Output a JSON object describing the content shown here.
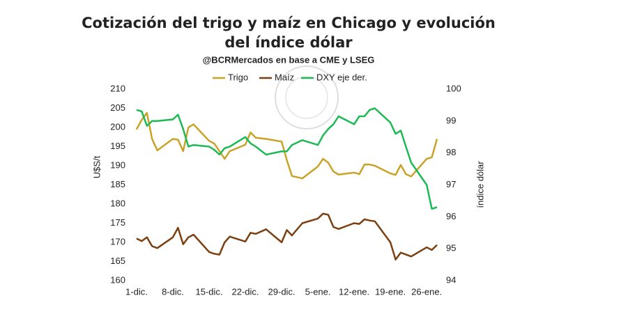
{
  "chart_data": {
    "type": "line",
    "title": [
      "Cotización del trigo y maíz en Chicago y evolución",
      "del índice dólar"
    ],
    "subtitle": "@BCRMercados en base a CME y LSEG",
    "y_label": "U$S/t",
    "y2_label": "índice dólar",
    "x": [
      0,
      1,
      2,
      3,
      4,
      7,
      8,
      9,
      10,
      11,
      14,
      15,
      16,
      17,
      18,
      21,
      22,
      23,
      25,
      28,
      29,
      30,
      32,
      35,
      36,
      37,
      38,
      39,
      42,
      43,
      44,
      45,
      46,
      49,
      50,
      51,
      52,
      53,
      56,
      57,
      58
    ],
    "xlim": [
      -0.8,
      58.4
    ],
    "xticks": [
      {
        "value": 0,
        "label": "1-dic."
      },
      {
        "value": 7,
        "label": "8-dic."
      },
      {
        "value": 14,
        "label": "15-dic."
      },
      {
        "value": 21,
        "label": "22-dic."
      },
      {
        "value": 28,
        "label": "29-dic."
      },
      {
        "value": 35,
        "label": "5-ene."
      },
      {
        "value": 42,
        "label": "12-ene."
      },
      {
        "value": 49,
        "label": "19-ene."
      },
      {
        "value": 56,
        "label": "26-ene."
      }
    ],
    "ylim": [
      160,
      210
    ],
    "yticks": [
      160,
      165,
      170,
      175,
      180,
      185,
      190,
      195,
      200,
      205,
      210
    ],
    "y2lim": [
      94,
      100
    ],
    "y2ticks": [
      94,
      95,
      96,
      97,
      98,
      99,
      100
    ],
    "legend": "top",
    "series": [
      {
        "name": "Trigo",
        "color": "#c9a227",
        "values": [
          199.5,
          202,
          203.8,
          197,
          194,
          197,
          196.8,
          193.8,
          200,
          200.8,
          196.5,
          195.8,
          193.8,
          191.8,
          193.8,
          195.5,
          198.7,
          197.3,
          197,
          196.3,
          191.5,
          187.3,
          186.7,
          189.8,
          191.8,
          190.8,
          188.5,
          187.7,
          188.2,
          187.8,
          190.3,
          190.3,
          190,
          188,
          187.6,
          190.2,
          187.8,
          187.2,
          191.8,
          192.2,
          197
        ]
      },
      {
        "name": "Maíz",
        "color": "#7b3f10",
        "values": [
          171,
          170.3,
          171.3,
          169,
          168.5,
          171.3,
          173.8,
          169.5,
          171.3,
          172,
          167.5,
          167,
          166.8,
          170,
          171.5,
          170.2,
          172.5,
          172.2,
          173.4,
          170,
          173.2,
          171.8,
          175,
          176.2,
          177.5,
          177.2,
          174,
          173.5,
          175,
          174.8,
          176,
          175.7,
          175.5,
          170,
          165.5,
          167.3,
          166.8,
          166.3,
          168.7,
          168,
          169.3
        ]
      },
      {
        "name": "DXY eje der.",
        "color": "#1db954",
        "axis": "y2",
        "values": [
          99.35,
          99.3,
          98.85,
          99.0,
          99.0,
          99.05,
          99.2,
          98.75,
          98.2,
          98.25,
          98.2,
          98.1,
          97.95,
          98.15,
          98.2,
          98.5,
          98.3,
          98.2,
          97.95,
          98.05,
          98.05,
          98.25,
          98.4,
          98.25,
          98.55,
          98.75,
          98.9,
          99.15,
          98.9,
          99.15,
          99.15,
          99.35,
          99.4,
          98.95,
          98.6,
          98.7,
          98.2,
          97.7,
          97.0,
          96.25,
          96.3
        ]
      }
    ]
  }
}
